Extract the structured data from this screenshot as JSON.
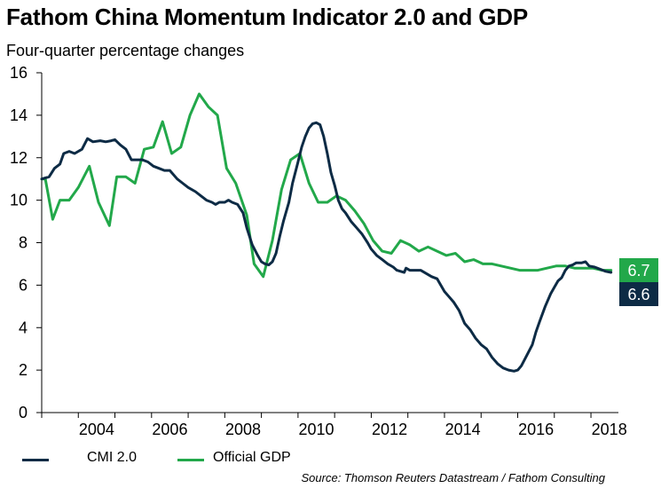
{
  "chart_data": {
    "type": "line",
    "title": "Fathom China Momentum Indicator 2.0 and GDP",
    "subtitle": "Four-quarter percentage changes",
    "source": "Source: Thomson Reuters Datastream / Fathom Consulting",
    "xlim": [
      2003.0,
      2018.75
    ],
    "ylim": [
      0,
      16
    ],
    "yticks": [
      "0",
      "2",
      "4",
      "6",
      "8",
      "10",
      "12",
      "14",
      "16"
    ],
    "xticks": [
      "2004",
      "2006",
      "2008",
      "2010",
      "2012",
      "2014",
      "2016",
      "2018"
    ],
    "grid": false,
    "legend_position": "bottom",
    "end_labels": [
      {
        "series": "Official GDP",
        "text": "6.7",
        "value": 6.7
      },
      {
        "series": "CMI 2.0",
        "text": "6.6",
        "value": 6.6
      }
    ],
    "series": [
      {
        "name": "CMI 2.0",
        "color": "#0d2b45",
        "points": [
          [
            2003.0,
            11.0
          ],
          [
            2003.2,
            11.1
          ],
          [
            2003.35,
            11.5
          ],
          [
            2003.5,
            11.7
          ],
          [
            2003.6,
            12.2
          ],
          [
            2003.75,
            12.3
          ],
          [
            2003.9,
            12.2
          ],
          [
            2004.1,
            12.4
          ],
          [
            2004.25,
            12.9
          ],
          [
            2004.4,
            12.75
          ],
          [
            2004.6,
            12.8
          ],
          [
            2004.75,
            12.75
          ],
          [
            2004.9,
            12.8
          ],
          [
            2005.0,
            12.85
          ],
          [
            2005.15,
            12.6
          ],
          [
            2005.3,
            12.4
          ],
          [
            2005.45,
            11.9
          ],
          [
            2005.6,
            11.9
          ],
          [
            2005.75,
            11.9
          ],
          [
            2005.9,
            11.8
          ],
          [
            2006.05,
            11.6
          ],
          [
            2006.2,
            11.5
          ],
          [
            2006.35,
            11.4
          ],
          [
            2006.5,
            11.4
          ],
          [
            2006.7,
            11.0
          ],
          [
            2006.85,
            10.8
          ],
          [
            2007.0,
            10.6
          ],
          [
            2007.2,
            10.4
          ],
          [
            2007.35,
            10.2
          ],
          [
            2007.5,
            10.0
          ],
          [
            2007.65,
            9.9
          ],
          [
            2007.75,
            9.8
          ],
          [
            2007.85,
            9.9
          ],
          [
            2008.0,
            9.9
          ],
          [
            2008.1,
            10.0
          ],
          [
            2008.2,
            9.9
          ],
          [
            2008.35,
            9.8
          ],
          [
            2008.5,
            9.4
          ],
          [
            2008.6,
            8.7
          ],
          [
            2008.75,
            7.9
          ],
          [
            2008.9,
            7.4
          ],
          [
            2009.0,
            7.1
          ],
          [
            2009.1,
            7.0
          ],
          [
            2009.2,
            6.95
          ],
          [
            2009.3,
            7.1
          ],
          [
            2009.4,
            7.5
          ],
          [
            2009.5,
            8.3
          ],
          [
            2009.6,
            9.0
          ],
          [
            2009.75,
            9.9
          ],
          [
            2009.85,
            10.8
          ],
          [
            2010.0,
            11.8
          ],
          [
            2010.1,
            12.5
          ],
          [
            2010.2,
            13.0
          ],
          [
            2010.3,
            13.4
          ],
          [
            2010.4,
            13.6
          ],
          [
            2010.5,
            13.65
          ],
          [
            2010.6,
            13.55
          ],
          [
            2010.7,
            13.0
          ],
          [
            2010.8,
            12.2
          ],
          [
            2010.9,
            11.3
          ],
          [
            2011.0,
            10.7
          ],
          [
            2011.1,
            10.0
          ],
          [
            2011.2,
            9.6
          ],
          [
            2011.3,
            9.4
          ],
          [
            2011.45,
            9.0
          ],
          [
            2011.6,
            8.7
          ],
          [
            2011.75,
            8.4
          ],
          [
            2011.9,
            8.0
          ],
          [
            2012.0,
            7.7
          ],
          [
            2012.15,
            7.4
          ],
          [
            2012.3,
            7.2
          ],
          [
            2012.45,
            7.0
          ],
          [
            2012.6,
            6.85
          ],
          [
            2012.7,
            6.7
          ],
          [
            2012.8,
            6.65
          ],
          [
            2012.9,
            6.6
          ],
          [
            2012.95,
            6.8
          ],
          [
            2013.05,
            6.7
          ],
          [
            2013.2,
            6.7
          ],
          [
            2013.35,
            6.7
          ],
          [
            2013.5,
            6.55
          ],
          [
            2013.65,
            6.4
          ],
          [
            2013.8,
            6.3
          ],
          [
            2013.9,
            6.0
          ],
          [
            2014.0,
            5.7
          ],
          [
            2014.1,
            5.5
          ],
          [
            2014.25,
            5.2
          ],
          [
            2014.4,
            4.8
          ],
          [
            2014.55,
            4.2
          ],
          [
            2014.7,
            3.9
          ],
          [
            2014.85,
            3.5
          ],
          [
            2015.0,
            3.2
          ],
          [
            2015.15,
            3.0
          ],
          [
            2015.3,
            2.6
          ],
          [
            2015.45,
            2.3
          ],
          [
            2015.6,
            2.1
          ],
          [
            2015.75,
            2.0
          ],
          [
            2015.9,
            1.95
          ],
          [
            2016.0,
            2.0
          ],
          [
            2016.1,
            2.2
          ],
          [
            2016.25,
            2.7
          ],
          [
            2016.4,
            3.2
          ],
          [
            2016.5,
            3.8
          ],
          [
            2016.6,
            4.3
          ],
          [
            2016.75,
            5.0
          ],
          [
            2016.9,
            5.6
          ],
          [
            2017.0,
            5.9
          ],
          [
            2017.1,
            6.2
          ],
          [
            2017.2,
            6.35
          ],
          [
            2017.3,
            6.7
          ],
          [
            2017.4,
            6.9
          ],
          [
            2017.5,
            6.95
          ],
          [
            2017.6,
            7.05
          ],
          [
            2017.75,
            7.05
          ],
          [
            2017.85,
            7.1
          ],
          [
            2017.95,
            6.9
          ],
          [
            2018.1,
            6.85
          ],
          [
            2018.25,
            6.75
          ],
          [
            2018.4,
            6.65
          ],
          [
            2018.55,
            6.6
          ]
        ]
      },
      {
        "name": "Official GDP",
        "color": "#22a84a",
        "points": [
          [
            2003.0,
            11.0
          ],
          [
            2003.1,
            11.0
          ],
          [
            2003.3,
            9.1
          ],
          [
            2003.5,
            10.0
          ],
          [
            2003.75,
            10.0
          ],
          [
            2004.0,
            10.6
          ],
          [
            2004.3,
            11.6
          ],
          [
            2004.55,
            9.9
          ],
          [
            2004.85,
            8.8
          ],
          [
            2005.05,
            11.1
          ],
          [
            2005.3,
            11.1
          ],
          [
            2005.55,
            10.8
          ],
          [
            2005.8,
            12.4
          ],
          [
            2006.05,
            12.5
          ],
          [
            2006.3,
            13.7
          ],
          [
            2006.55,
            12.2
          ],
          [
            2006.8,
            12.5
          ],
          [
            2007.05,
            14.0
          ],
          [
            2007.3,
            15.0
          ],
          [
            2007.55,
            14.4
          ],
          [
            2007.8,
            14.0
          ],
          [
            2008.05,
            11.5
          ],
          [
            2008.3,
            10.8
          ],
          [
            2008.6,
            9.3
          ],
          [
            2008.8,
            7.0
          ],
          [
            2009.05,
            6.4
          ],
          [
            2009.3,
            8.1
          ],
          [
            2009.55,
            10.5
          ],
          [
            2009.8,
            11.9
          ],
          [
            2010.05,
            12.2
          ],
          [
            2010.3,
            10.8
          ],
          [
            2010.55,
            9.9
          ],
          [
            2010.8,
            9.9
          ],
          [
            2011.05,
            10.2
          ],
          [
            2011.3,
            10.0
          ],
          [
            2011.55,
            9.5
          ],
          [
            2011.8,
            8.9
          ],
          [
            2012.05,
            8.1
          ],
          [
            2012.3,
            7.6
          ],
          [
            2012.55,
            7.5
          ],
          [
            2012.8,
            8.1
          ],
          [
            2013.05,
            7.9
          ],
          [
            2013.3,
            7.6
          ],
          [
            2013.55,
            7.8
          ],
          [
            2013.8,
            7.6
          ],
          [
            2014.05,
            7.4
          ],
          [
            2014.3,
            7.5
          ],
          [
            2014.55,
            7.1
          ],
          [
            2014.8,
            7.2
          ],
          [
            2015.05,
            7.0
          ],
          [
            2015.3,
            7.0
          ],
          [
            2015.55,
            6.9
          ],
          [
            2015.8,
            6.8
          ],
          [
            2016.05,
            6.7
          ],
          [
            2016.3,
            6.7
          ],
          [
            2016.55,
            6.7
          ],
          [
            2016.8,
            6.8
          ],
          [
            2017.05,
            6.9
          ],
          [
            2017.3,
            6.9
          ],
          [
            2017.55,
            6.8
          ],
          [
            2017.8,
            6.8
          ],
          [
            2018.05,
            6.8
          ],
          [
            2018.3,
            6.7
          ],
          [
            2018.55,
            6.7
          ]
        ]
      }
    ]
  }
}
